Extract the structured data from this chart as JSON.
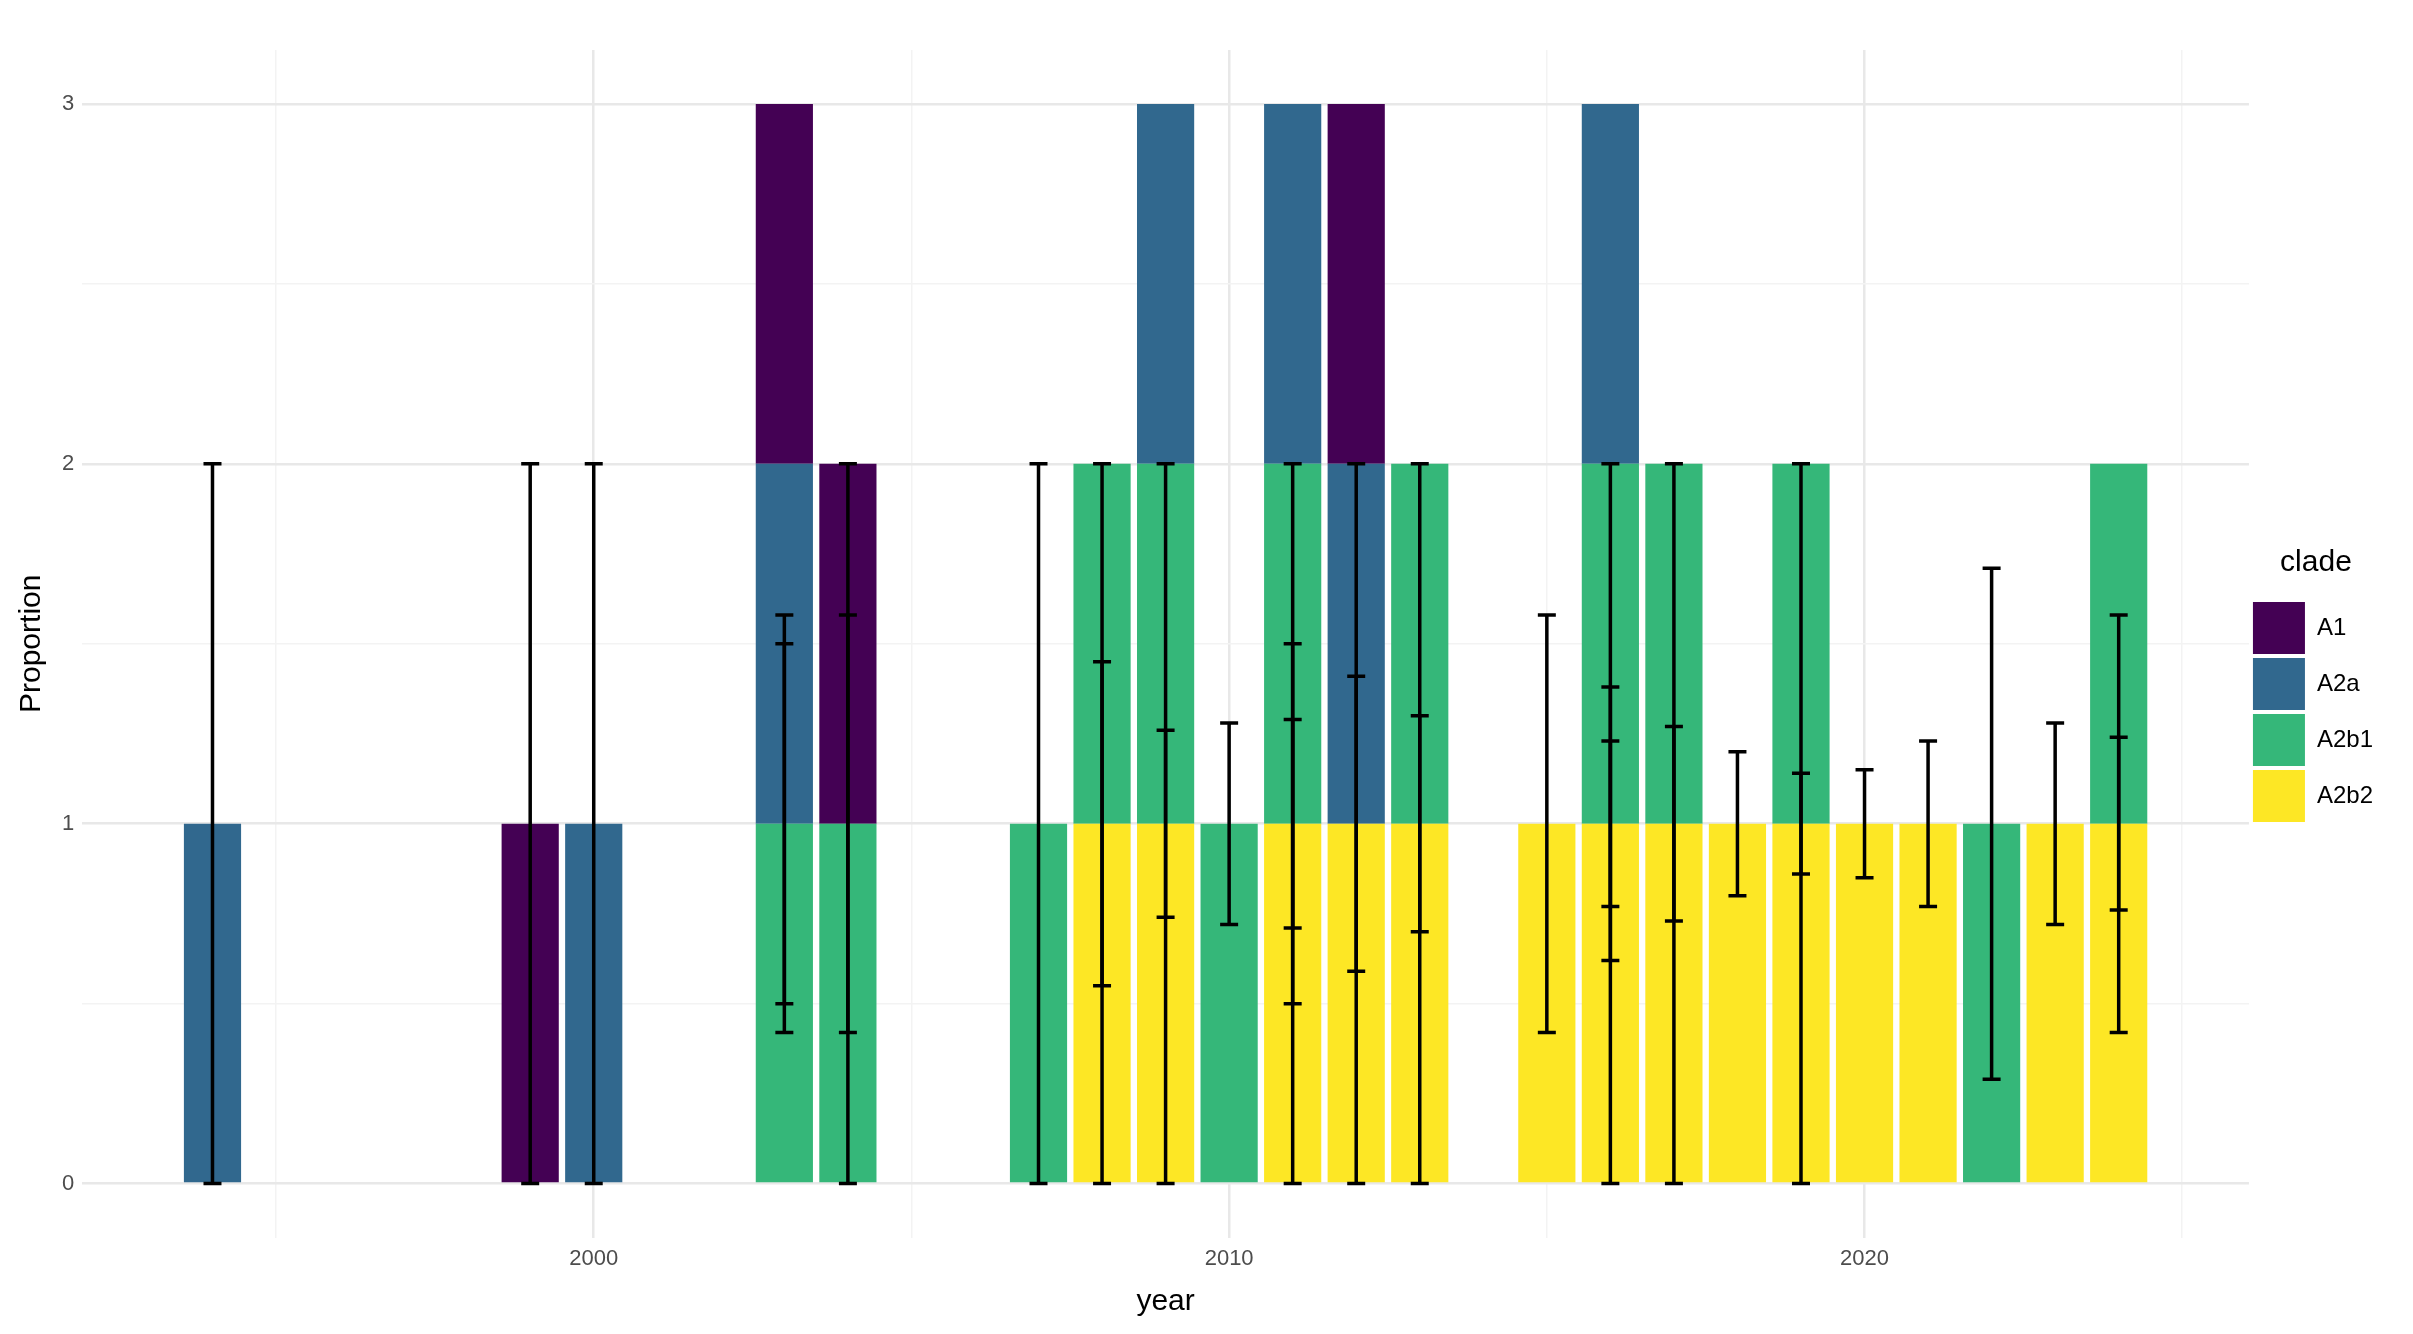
{
  "chart_data": {
    "type": "bar",
    "stacked": true,
    "xlabel": "year",
    "ylabel": "Proportion",
    "legend_title": "clade",
    "legend": "right",
    "grid": true,
    "xlim": [
      1991.95,
      2026.05
    ],
    "xticks": [
      {
        "value": 1995,
        "label": null
      },
      2000,
      {
        "value": 2005,
        "label": null
      },
      2010,
      {
        "value": 2015,
        "label": null
      },
      2020,
      {
        "value": 2025,
        "label": null
      }
    ],
    "ylim": [
      -0.15,
      3.15
    ],
    "yticks": [
      0,
      {
        "value": 0.5,
        "label": null
      },
      1,
      {
        "value": 1.5,
        "label": null
      },
      2,
      {
        "value": 2.5,
        "label": null
      },
      3
    ],
    "x": [
      1994,
      1999,
      2000,
      2003,
      2004,
      2007,
      2008,
      2009,
      2010,
      2011,
      2012,
      2013,
      2015,
      2016,
      2017,
      2018,
      2019,
      2020,
      2021,
      2022,
      2023,
      2024
    ],
    "series": [
      {
        "name": "A2b2",
        "color": "#fde725",
        "values": [
          null,
          null,
          null,
          null,
          null,
          null,
          1,
          1,
          null,
          1,
          1,
          1,
          1,
          1,
          1,
          1,
          1,
          1,
          1,
          null,
          1,
          1
        ],
        "errors": [
          null,
          null,
          null,
          null,
          null,
          null,
          [
            0.55,
            1.45
          ],
          [
            0.74,
            1.26
          ],
          null,
          [
            0.71,
            1.29
          ],
          [
            0.59,
            1.41
          ],
          [
            0.7,
            1.3
          ],
          [
            0.42,
            1.58
          ],
          [
            0.77,
            1.23
          ],
          [
            0.73,
            1.27
          ],
          [
            0.8,
            1.2
          ],
          [
            0.86,
            1.14
          ],
          [
            0.85,
            1.15
          ],
          [
            0.77,
            1.23
          ],
          null,
          [
            0.72,
            1.28
          ],
          [
            0.76,
            1.24
          ]
        ]
      },
      {
        "name": "A2b1",
        "color": "#35b779",
        "values": [
          null,
          null,
          null,
          1,
          1,
          1,
          1,
          1,
          1,
          1,
          null,
          1,
          null,
          1,
          1,
          null,
          1,
          null,
          null,
          1,
          null,
          1
        ],
        "errors": [
          null,
          null,
          null,
          [
            0.5,
            1.5
          ],
          [
            0.42,
            1.58
          ],
          [
            0,
            2
          ],
          [
            0,
            2
          ],
          [
            0,
            2
          ],
          [
            0.72,
            1.28
          ],
          [
            0.5,
            1.5
          ],
          null,
          [
            0,
            2
          ],
          null,
          [
            0.62,
            1.38
          ],
          [
            0,
            2
          ],
          null,
          [
            0,
            2
          ],
          null,
          null,
          [
            0.29,
            1.71
          ],
          null,
          [
            0.42,
            1.58
          ]
        ]
      },
      {
        "name": "A2a",
        "color": "#31688e",
        "values": [
          1,
          null,
          1,
          1,
          null,
          null,
          null,
          1,
          null,
          1,
          1,
          null,
          null,
          1,
          null,
          null,
          null,
          null,
          null,
          null,
          null,
          null
        ],
        "errors": [
          [
            0,
            2
          ],
          null,
          [
            0,
            2
          ],
          [
            0.42,
            1.58
          ],
          null,
          null,
          null,
          null,
          null,
          [
            0,
            2
          ],
          [
            0,
            2
          ],
          null,
          null,
          [
            0,
            2
          ],
          null,
          null,
          null,
          null,
          null,
          null,
          null,
          null
        ]
      },
      {
        "name": "A1",
        "color": "#440154",
        "values": [
          null,
          1,
          null,
          1,
          1,
          null,
          null,
          null,
          null,
          null,
          1,
          null,
          null,
          null,
          null,
          null,
          null,
          null,
          null,
          null,
          null,
          null
        ],
        "errors": [
          null,
          [
            0,
            2
          ],
          null,
          null,
          [
            0,
            2
          ],
          null,
          null,
          null,
          null,
          null,
          null,
          null,
          null,
          null,
          null,
          null,
          null,
          null,
          null,
          null,
          null,
          null
        ]
      }
    ]
  }
}
